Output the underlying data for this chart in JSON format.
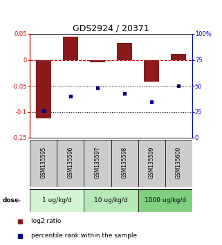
{
  "title": "GDS2924 / 20371",
  "samples": [
    "GSM135595",
    "GSM135596",
    "GSM135597",
    "GSM135598",
    "GSM135599",
    "GSM135600"
  ],
  "log2_ratio": [
    -0.113,
    0.045,
    -0.005,
    0.033,
    -0.042,
    0.011
  ],
  "percentile_rank": [
    26,
    40,
    48,
    43,
    35,
    50
  ],
  "left_ylim": [
    -0.15,
    0.05
  ],
  "right_ylim": [
    0,
    100
  ],
  "left_yticks": [
    0.05,
    0,
    -0.05,
    -0.1,
    -0.15
  ],
  "right_yticks": [
    100,
    75,
    50,
    25,
    0
  ],
  "left_ytick_labels": [
    "0.05",
    "0",
    "-0.05",
    "-0.1",
    "-0.15"
  ],
  "right_ytick_labels": [
    "100%",
    "75",
    "50",
    "25",
    "0"
  ],
  "bar_color": "#8B1A1A",
  "square_color": "#00008B",
  "dose_groups": [
    {
      "label": "1 ug/kg/d",
      "cols": [
        0,
        1
      ],
      "color": "#d4f5d4"
    },
    {
      "label": "10 ug/kg/d",
      "cols": [
        2,
        3
      ],
      "color": "#b8e8b8"
    },
    {
      "label": "1000 ug/kg/d",
      "cols": [
        4,
        5
      ],
      "color": "#80d080"
    }
  ],
  "dose_label": "dose",
  "legend_bar_label": "log2 ratio",
  "legend_square_label": "percentile rank within the sample",
  "sample_box_color": "#cccccc",
  "left_axis_color": "#cc0000",
  "right_axis_color": "#0000cc",
  "title_fontsize": 9,
  "tick_fontsize": 6,
  "sample_fontsize": 5.5,
  "dose_fontsize": 6.5,
  "legend_fontsize": 6.5
}
